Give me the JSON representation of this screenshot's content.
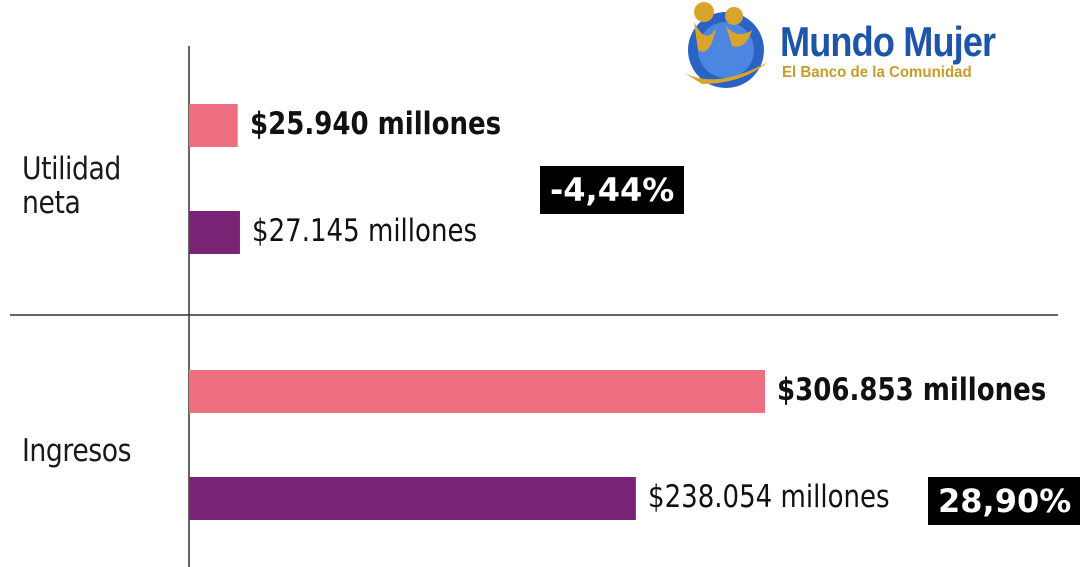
{
  "logo": {
    "title": "Mundo Mujer",
    "subtitle": "El Banco de la Comunidad",
    "colors": {
      "blue": "#1f55a8",
      "gold": "#c79b2a"
    }
  },
  "chart_data": {
    "type": "bar",
    "orientation": "horizontal",
    "categories": [
      "Utilidad neta",
      "Ingresos"
    ],
    "category_lines": [
      [
        "Utilidad",
        "neta"
      ],
      [
        "Ingresos"
      ]
    ],
    "series": [
      {
        "color": "#ee6f80",
        "values": [
          25940,
          306853
        ],
        "value_labels": [
          "$25.940 millones",
          "$306.853 millones"
        ],
        "bold": true
      },
      {
        "color": "#7a2273",
        "values": [
          27145,
          238054
        ],
        "value_labels": [
          "$27.145 millones",
          "$238.054 millones"
        ],
        "bold": false
      }
    ],
    "changes": [
      "-4,44%",
      "28,90%"
    ],
    "units": "millones",
    "grid": false,
    "legend": "none"
  }
}
